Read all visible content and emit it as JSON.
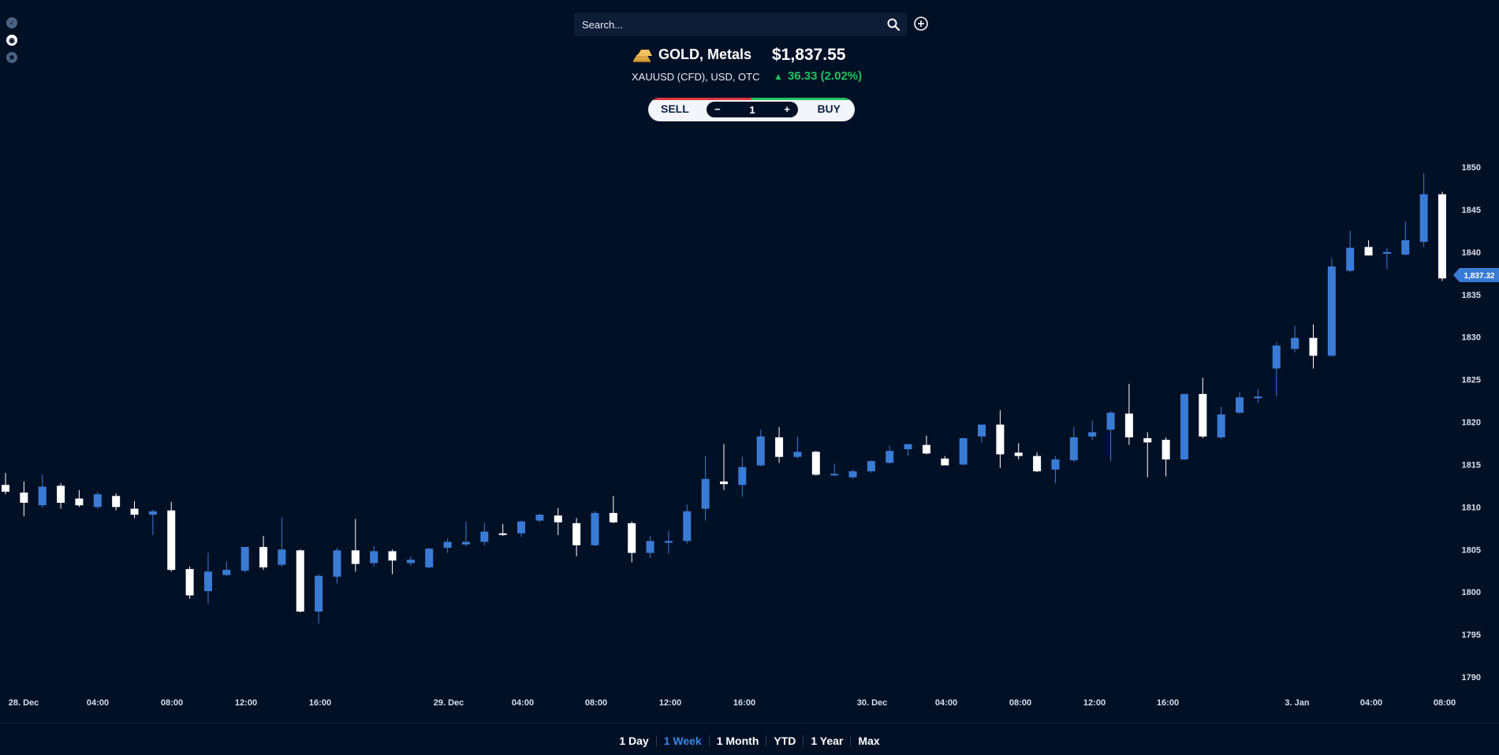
{
  "toolbar": {
    "icons": [
      "chart-icon",
      "record-icon",
      "settings-icon"
    ]
  },
  "search": {
    "placeholder": "Search..."
  },
  "instrument": {
    "name": "GOLD, Metals",
    "price": "$1,837.55",
    "subtitle": "XAUUSD (CFD), USD, OTC",
    "change": "36.33 (2.02%)",
    "change_arrow": "▲"
  },
  "trade": {
    "sell_label": "SELL",
    "buy_label": "BUY",
    "quantity": "1",
    "minus": "−",
    "plus": "+"
  },
  "ranges": [
    {
      "label": "1 Day",
      "active": false
    },
    {
      "label": "1 Week",
      "active": true
    },
    {
      "label": "1 Month",
      "active": false
    },
    {
      "label": "YTD",
      "active": false
    },
    {
      "label": "1 Year",
      "active": false
    },
    {
      "label": "Max",
      "active": false
    }
  ],
  "colors": {
    "background": "#021026",
    "up_candle": "#3a7bd5",
    "down_candle": "#ffffff",
    "positive": "#21c35e",
    "sell": "#e0383d",
    "buy": "#22c55e",
    "active_range": "#3a86e6"
  },
  "chart_data": {
    "type": "candlestick",
    "ylim": [
      1788,
      1851
    ],
    "y_ticks": [
      1790,
      1795,
      1800,
      1805,
      1810,
      1815,
      1820,
      1825,
      1830,
      1835,
      1840,
      1845,
      1850
    ],
    "x_labels": [
      "28. Dec",
      "04:00",
      "08:00",
      "12:00",
      "16:00",
      "29. Dec",
      "04:00",
      "08:00",
      "12:00",
      "16:00",
      "30. Dec",
      "04:00",
      "08:00",
      "12:00",
      "16:00",
      "3. Jan",
      "04:00",
      "08:00"
    ],
    "last_price_label": "1,837.32",
    "last_price": 1837.3,
    "candles": [
      {
        "o": 1812.6,
        "h": 1814.0,
        "l": 1811.5,
        "c": 1811.8
      },
      {
        "o": 1811.7,
        "h": 1813.0,
        "l": 1808.9,
        "c": 1810.5
      },
      {
        "o": 1810.2,
        "h": 1813.8,
        "l": 1809.9,
        "c": 1812.4
      },
      {
        "o": 1812.5,
        "h": 1812.8,
        "l": 1809.8,
        "c": 1810.5
      },
      {
        "o": 1811.0,
        "h": 1812.0,
        "l": 1810.0,
        "c": 1810.2
      },
      {
        "o": 1810.0,
        "h": 1811.8,
        "l": 1809.8,
        "c": 1811.5
      },
      {
        "o": 1811.3,
        "h": 1811.6,
        "l": 1809.6,
        "c": 1810.0
      },
      {
        "o": 1809.8,
        "h": 1810.7,
        "l": 1808.7,
        "c": 1809.1
      },
      {
        "o": 1809.1,
        "h": 1809.7,
        "l": 1806.7,
        "c": 1809.5
      },
      {
        "o": 1809.6,
        "h": 1810.6,
        "l": 1802.4,
        "c": 1802.6
      },
      {
        "o": 1802.7,
        "h": 1803.0,
        "l": 1799.2,
        "c": 1799.6
      },
      {
        "o": 1800.1,
        "h": 1804.6,
        "l": 1798.6,
        "c": 1802.4
      },
      {
        "o": 1802.0,
        "h": 1803.6,
        "l": 1801.9,
        "c": 1802.6
      },
      {
        "o": 1802.5,
        "h": 1805.3,
        "l": 1802.3,
        "c": 1805.3
      },
      {
        "o": 1805.3,
        "h": 1806.6,
        "l": 1802.6,
        "c": 1802.9
      },
      {
        "o": 1803.2,
        "h": 1808.8,
        "l": 1803.0,
        "c": 1805.0
      },
      {
        "o": 1804.9,
        "h": 1805.0,
        "l": 1797.6,
        "c": 1797.7
      },
      {
        "o": 1797.7,
        "h": 1802.1,
        "l": 1796.3,
        "c": 1801.9
      },
      {
        "o": 1801.8,
        "h": 1805.2,
        "l": 1801.0,
        "c": 1804.9
      },
      {
        "o": 1804.9,
        "h": 1808.6,
        "l": 1802.4,
        "c": 1803.3
      },
      {
        "o": 1803.4,
        "h": 1805.4,
        "l": 1803.0,
        "c": 1804.8
      },
      {
        "o": 1804.8,
        "h": 1805.0,
        "l": 1802.1,
        "c": 1803.7
      },
      {
        "o": 1803.4,
        "h": 1804.2,
        "l": 1803.1,
        "c": 1803.8
      },
      {
        "o": 1802.9,
        "h": 1805.2,
        "l": 1802.8,
        "c": 1805.1
      },
      {
        "o": 1805.2,
        "h": 1806.3,
        "l": 1804.6,
        "c": 1805.9
      },
      {
        "o": 1805.6,
        "h": 1808.3,
        "l": 1805.4,
        "c": 1805.9
      },
      {
        "o": 1805.9,
        "h": 1808.1,
        "l": 1805.5,
        "c": 1807.1
      },
      {
        "o": 1806.9,
        "h": 1808.0,
        "l": 1806.6,
        "c": 1806.8
      },
      {
        "o": 1806.9,
        "h": 1808.4,
        "l": 1806.5,
        "c": 1808.3
      },
      {
        "o": 1808.4,
        "h": 1809.2,
        "l": 1808.2,
        "c": 1809.1
      },
      {
        "o": 1809.0,
        "h": 1809.9,
        "l": 1806.7,
        "c": 1808.2
      },
      {
        "o": 1808.1,
        "h": 1808.7,
        "l": 1804.2,
        "c": 1805.5
      },
      {
        "o": 1805.5,
        "h": 1809.5,
        "l": 1805.4,
        "c": 1809.3
      },
      {
        "o": 1809.3,
        "h": 1811.3,
        "l": 1808.1,
        "c": 1808.2
      },
      {
        "o": 1808.1,
        "h": 1808.3,
        "l": 1803.5,
        "c": 1804.6
      },
      {
        "o": 1804.6,
        "h": 1806.6,
        "l": 1804.0,
        "c": 1806.0
      },
      {
        "o": 1805.8,
        "h": 1807.2,
        "l": 1804.5,
        "c": 1806.0
      },
      {
        "o": 1806.0,
        "h": 1810.3,
        "l": 1805.7,
        "c": 1809.5
      },
      {
        "o": 1809.8,
        "h": 1816.0,
        "l": 1808.4,
        "c": 1813.3
      },
      {
        "o": 1813.0,
        "h": 1817.4,
        "l": 1812.0,
        "c": 1812.7
      },
      {
        "o": 1812.6,
        "h": 1815.9,
        "l": 1811.2,
        "c": 1814.7
      },
      {
        "o": 1814.9,
        "h": 1819.1,
        "l": 1814.8,
        "c": 1818.3
      },
      {
        "o": 1818.2,
        "h": 1819.4,
        "l": 1815.2,
        "c": 1815.9
      },
      {
        "o": 1815.9,
        "h": 1818.3,
        "l": 1815.7,
        "c": 1816.5
      },
      {
        "o": 1816.5,
        "h": 1816.6,
        "l": 1813.7,
        "c": 1813.8
      },
      {
        "o": 1813.8,
        "h": 1815.1,
        "l": 1813.6,
        "c": 1813.9
      },
      {
        "o": 1813.5,
        "h": 1814.4,
        "l": 1813.3,
        "c": 1814.2
      },
      {
        "o": 1814.2,
        "h": 1815.5,
        "l": 1814.0,
        "c": 1815.4
      },
      {
        "o": 1815.2,
        "h": 1817.2,
        "l": 1815.1,
        "c": 1816.6
      },
      {
        "o": 1816.8,
        "h": 1817.4,
        "l": 1816.0,
        "c": 1817.4
      },
      {
        "o": 1817.3,
        "h": 1818.4,
        "l": 1816.2,
        "c": 1816.3
      },
      {
        "o": 1815.7,
        "h": 1816.0,
        "l": 1815.0,
        "c": 1814.9
      },
      {
        "o": 1815.0,
        "h": 1818.1,
        "l": 1814.9,
        "c": 1818.1
      },
      {
        "o": 1818.3,
        "h": 1819.7,
        "l": 1817.6,
        "c": 1819.7
      },
      {
        "o": 1819.7,
        "h": 1821.4,
        "l": 1814.6,
        "c": 1816.2
      },
      {
        "o": 1816.4,
        "h": 1817.5,
        "l": 1815.6,
        "c": 1816.0
      },
      {
        "o": 1816.0,
        "h": 1816.4,
        "l": 1814.1,
        "c": 1814.2
      },
      {
        "o": 1814.4,
        "h": 1816.0,
        "l": 1812.8,
        "c": 1815.6
      },
      {
        "o": 1815.5,
        "h": 1819.4,
        "l": 1815.3,
        "c": 1818.2
      },
      {
        "o": 1818.3,
        "h": 1820.2,
        "l": 1817.9,
        "c": 1818.8
      },
      {
        "o": 1819.1,
        "h": 1821.3,
        "l": 1815.4,
        "c": 1821.1
      },
      {
        "o": 1821.0,
        "h": 1824.5,
        "l": 1817.3,
        "c": 1818.2
      },
      {
        "o": 1818.1,
        "h": 1818.8,
        "l": 1813.5,
        "c": 1817.6
      },
      {
        "o": 1817.9,
        "h": 1818.2,
        "l": 1813.6,
        "c": 1815.6
      },
      {
        "o": 1815.6,
        "h": 1823.3,
        "l": 1815.5,
        "c": 1823.3
      },
      {
        "o": 1823.3,
        "h": 1825.2,
        "l": 1818.1,
        "c": 1818.3
      },
      {
        "o": 1818.2,
        "h": 1821.8,
        "l": 1818.0,
        "c": 1820.9
      },
      {
        "o": 1821.1,
        "h": 1823.5,
        "l": 1821.0,
        "c": 1822.9
      },
      {
        "o": 1822.8,
        "h": 1823.9,
        "l": 1822.2,
        "c": 1823.0
      },
      {
        "o": 1826.3,
        "h": 1829.4,
        "l": 1823.0,
        "c": 1829.0
      },
      {
        "o": 1828.6,
        "h": 1831.3,
        "l": 1828.2,
        "c": 1829.9
      },
      {
        "o": 1829.9,
        "h": 1831.5,
        "l": 1826.3,
        "c": 1827.8
      },
      {
        "o": 1827.8,
        "h": 1839.3,
        "l": 1827.7,
        "c": 1838.3
      },
      {
        "o": 1837.8,
        "h": 1842.5,
        "l": 1837.6,
        "c": 1840.5
      },
      {
        "o": 1840.6,
        "h": 1841.4,
        "l": 1839.6,
        "c": 1839.6
      },
      {
        "o": 1839.8,
        "h": 1840.5,
        "l": 1838.0,
        "c": 1840.0
      },
      {
        "o": 1839.7,
        "h": 1843.6,
        "l": 1839.6,
        "c": 1841.4
      },
      {
        "o": 1841.2,
        "h": 1849.3,
        "l": 1840.6,
        "c": 1846.8
      },
      {
        "o": 1846.8,
        "h": 1847.1,
        "l": 1836.6,
        "c": 1836.9
      }
    ]
  }
}
